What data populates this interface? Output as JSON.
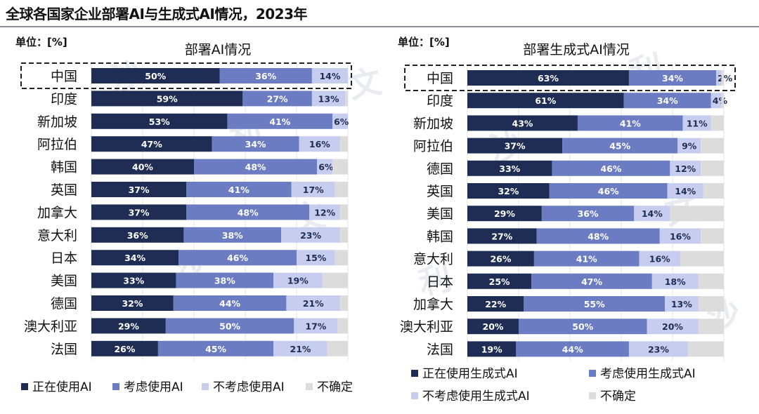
{
  "page": {
    "title": "全球各国家企业部署AI与生成式AI情况，2023年",
    "watermark": "沙利文"
  },
  "colors": {
    "dark_navy": "#1f2d55",
    "medium_blue": "#6b7cc2",
    "light_blue": "#c6cdef",
    "gray": "#dcdcdc",
    "highlight_border": "#222222"
  },
  "chart_data": [
    {
      "type": "bar",
      "orientation": "horizontal-stacked-100",
      "title": "部署AI情况",
      "unit_label": "单位：[%]",
      "categories": [
        "中国",
        "印度",
        "新加坡",
        "阿拉伯",
        "韩国",
        "英国",
        "加拿大",
        "意大利",
        "日本",
        "美国",
        "德国",
        "澳大利亚",
        "法国"
      ],
      "highlighted_category": "中国",
      "series": [
        {
          "name": "正在使用AI",
          "values": [
            50,
            59,
            53,
            47,
            40,
            37,
            37,
            36,
            34,
            33,
            32,
            29,
            26
          ]
        },
        {
          "name": "考虑使用AI",
          "values": [
            36,
            27,
            41,
            34,
            48,
            41,
            48,
            38,
            46,
            38,
            44,
            50,
            45
          ]
        },
        {
          "name": "不考虑使用AI",
          "values": [
            14,
            13,
            6,
            16,
            6,
            17,
            12,
            23,
            15,
            19,
            21,
            17,
            21
          ]
        },
        {
          "name": "不确定",
          "values": [
            0,
            1,
            0,
            3,
            6,
            5,
            3,
            3,
            5,
            10,
            3,
            4,
            8
          ]
        }
      ],
      "labels": [
        [
          "50%",
          "36%",
          "14%"
        ],
        [
          "59%",
          "27%",
          "13%"
        ],
        [
          "53%",
          "41%",
          "6%"
        ],
        [
          "47%",
          "34%",
          "16%"
        ],
        [
          "40%",
          "48%",
          "6%"
        ],
        [
          "37%",
          "41%",
          "17%"
        ],
        [
          "37%",
          "48%",
          "12%"
        ],
        [
          "36%",
          "38%",
          "23%"
        ],
        [
          "34%",
          "46%",
          "15%"
        ],
        [
          "33%",
          "38%",
          "19%"
        ],
        [
          "32%",
          "44%",
          "21%"
        ],
        [
          "29%",
          "50%",
          "17%"
        ],
        [
          "26%",
          "45%",
          "21%"
        ]
      ],
      "xlim": [
        0,
        100
      ],
      "grid": true,
      "legend_position": "bottom"
    },
    {
      "type": "bar",
      "orientation": "horizontal-stacked-100",
      "title": "部署生成式AI情况",
      "unit_label": "单位：[%]",
      "categories": [
        "中国",
        "印度",
        "新加坡",
        "阿拉伯",
        "德国",
        "英国",
        "美国",
        "韩国",
        "意大利",
        "日本",
        "加拿大",
        "澳大利亚",
        "法国"
      ],
      "highlighted_category": "中国",
      "series": [
        {
          "name": "正在使用生成式AI",
          "values": [
            63,
            61,
            43,
            37,
            33,
            32,
            29,
            27,
            26,
            25,
            22,
            20,
            19
          ]
        },
        {
          "name": "考虑使用生成式AI",
          "values": [
            34,
            34,
            41,
            45,
            46,
            46,
            36,
            48,
            41,
            47,
            55,
            50,
            44
          ]
        },
        {
          "name": "不考虑使用生成式AI",
          "values": [
            2,
            4,
            11,
            9,
            12,
            14,
            14,
            16,
            16,
            18,
            13,
            20,
            23
          ]
        },
        {
          "name": "不确定",
          "values": [
            1,
            1,
            5,
            9,
            9,
            8,
            21,
            9,
            17,
            10,
            10,
            10,
            14
          ]
        }
      ],
      "labels": [
        [
          "63%",
          "34%",
          "2%"
        ],
        [
          "61%",
          "34%",
          "4%"
        ],
        [
          "43%",
          "41%",
          "11%"
        ],
        [
          "37%",
          "45%",
          "9%"
        ],
        [
          "33%",
          "46%",
          "12%"
        ],
        [
          "32%",
          "46%",
          "14%"
        ],
        [
          "29%",
          "36%",
          "14%"
        ],
        [
          "27%",
          "48%",
          "16%"
        ],
        [
          "26%",
          "41%",
          "16%"
        ],
        [
          "25%",
          "47%",
          "18%"
        ],
        [
          "22%",
          "55%",
          "13%"
        ],
        [
          "20%",
          "50%",
          "20%"
        ],
        [
          "19%",
          "44%",
          "23%"
        ]
      ],
      "xlim": [
        0,
        100
      ],
      "grid": true,
      "legend_position": "bottom"
    }
  ]
}
